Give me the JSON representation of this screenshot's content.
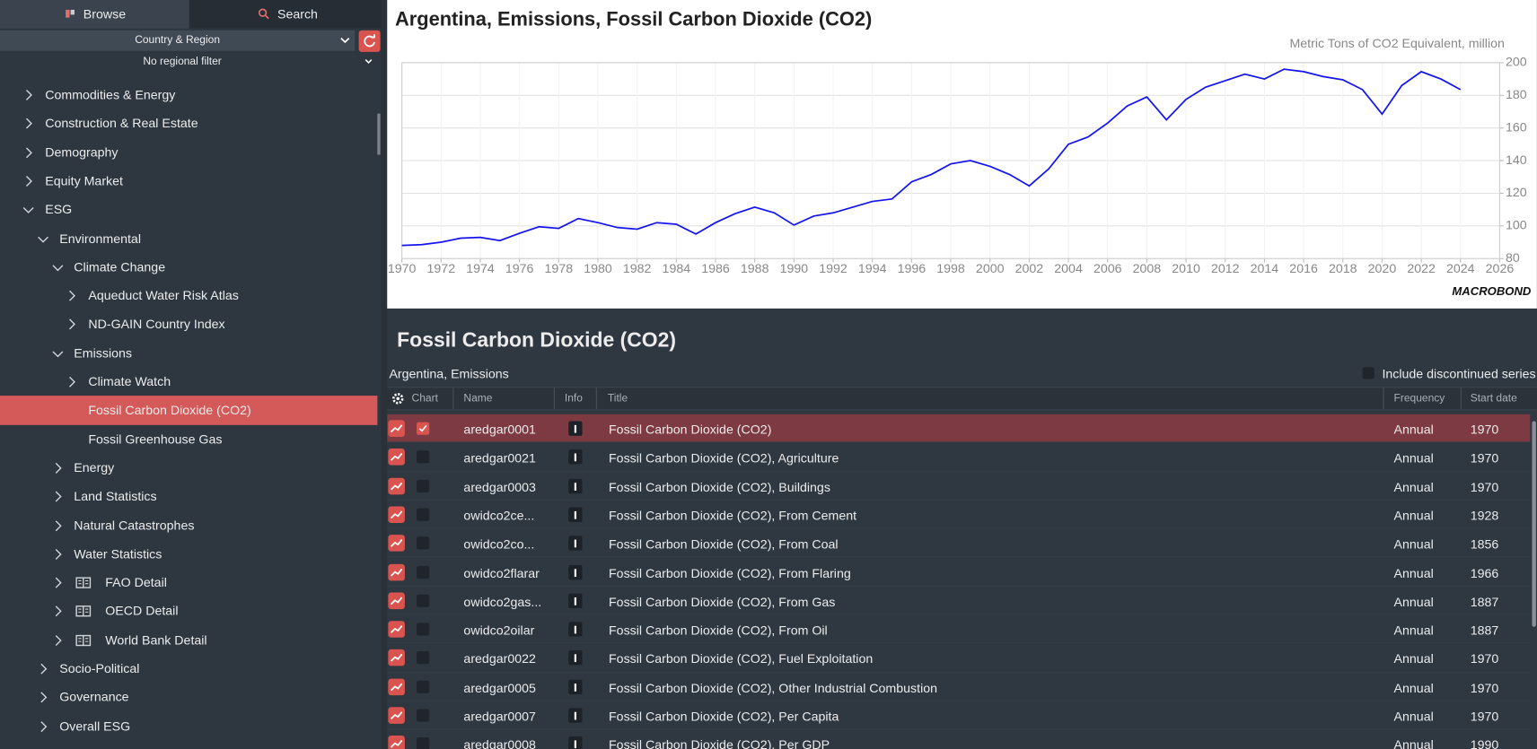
{
  "sidebar": {
    "tabs": [
      "Browse",
      "Search"
    ],
    "active_tab": 0,
    "filters": [
      "Country & Region",
      "No regional filter"
    ],
    "tree": [
      {
        "label": "Commodities & Energy",
        "level": 0,
        "state": "collapsed"
      },
      {
        "label": "Construction & Real Estate",
        "level": 0,
        "state": "collapsed"
      },
      {
        "label": "Demography",
        "level": 0,
        "state": "collapsed"
      },
      {
        "label": "Equity Market",
        "level": 0,
        "state": "collapsed"
      },
      {
        "label": "ESG",
        "level": 0,
        "state": "expanded"
      },
      {
        "label": "Environmental",
        "level": 1,
        "state": "expanded"
      },
      {
        "label": "Climate Change",
        "level": 2,
        "state": "expanded"
      },
      {
        "label": "Aqueduct Water Risk Atlas",
        "level": 3,
        "state": "collapsed"
      },
      {
        "label": "ND-GAIN Country Index",
        "level": 3,
        "state": "collapsed"
      },
      {
        "label": "Emissions",
        "level": 2,
        "state": "expanded"
      },
      {
        "label": "Climate Watch",
        "level": 3,
        "state": "collapsed"
      },
      {
        "label": "Fossil Carbon Dioxide (CO2)",
        "level": 3,
        "state": "leaf",
        "selected": true
      },
      {
        "label": "Fossil Greenhouse Gas",
        "level": 3,
        "state": "leaf"
      },
      {
        "label": "Energy",
        "level": 2,
        "state": "collapsed"
      },
      {
        "label": "Land Statistics",
        "level": 2,
        "state": "collapsed"
      },
      {
        "label": "Natural Catastrophes",
        "level": 2,
        "state": "collapsed"
      },
      {
        "label": "Water Statistics",
        "level": 2,
        "state": "collapsed"
      },
      {
        "label": "FAO Detail",
        "level": 2,
        "state": "collapsed",
        "icon": "book"
      },
      {
        "label": "OECD Detail",
        "level": 2,
        "state": "collapsed",
        "icon": "book"
      },
      {
        "label": "World Bank Detail",
        "level": 2,
        "state": "collapsed",
        "icon": "book"
      },
      {
        "label": "Socio-Political",
        "level": 1,
        "state": "collapsed"
      },
      {
        "label": "Governance",
        "level": 1,
        "state": "collapsed"
      },
      {
        "label": "Overall ESG",
        "level": 1,
        "state": "collapsed"
      }
    ]
  },
  "chart_data": {
    "type": "line",
    "title": "Argentina, Emissions, Fossil Carbon Dioxide (CO2)",
    "y_label": "Metric Tons of CO2 Equivalent, million",
    "logo": "MACROBOND",
    "x": [
      1970,
      1971,
      1972,
      1973,
      1974,
      1975,
      1976,
      1977,
      1978,
      1979,
      1980,
      1981,
      1982,
      1983,
      1984,
      1985,
      1986,
      1987,
      1988,
      1989,
      1990,
      1991,
      1992,
      1993,
      1994,
      1995,
      1996,
      1997,
      1998,
      1999,
      2000,
      2001,
      2002,
      2003,
      2004,
      2005,
      2006,
      2007,
      2008,
      2009,
      2010,
      2011,
      2012,
      2013,
      2014,
      2015,
      2016,
      2017,
      2018,
      2019,
      2020,
      2021,
      2022,
      2023,
      2024
    ],
    "series": [
      {
        "name": "Fossil Carbon Dioxide (CO2)",
        "color": "#1414f0",
        "values": [
          88,
          88.5,
          90,
          92.5,
          93,
          91,
          95.5,
          99.5,
          98.5,
          104.5,
          102,
          99,
          98,
          102,
          101,
          95,
          102,
          107.5,
          111.5,
          108,
          100.5,
          106,
          108,
          111.5,
          115,
          116.5,
          127,
          131.5,
          138,
          140,
          136.5,
          131.5,
          124.5,
          135,
          150,
          154.5,
          163,
          173.5,
          179,
          165,
          177.5,
          185,
          189,
          193,
          190,
          196,
          194.5,
          191.5,
          189.5,
          183.5,
          168.5,
          186,
          194.5,
          190,
          183.5
        ]
      }
    ],
    "xlim": [
      1970,
      2026
    ],
    "xticks": [
      1970,
      1972,
      1974,
      1976,
      1978,
      1980,
      1982,
      1984,
      1986,
      1988,
      1990,
      1992,
      1994,
      1996,
      1998,
      2000,
      2002,
      2004,
      2006,
      2008,
      2010,
      2012,
      2014,
      2016,
      2018,
      2020,
      2022,
      2024,
      2026
    ],
    "ylim": [
      80,
      200
    ],
    "yticks": [
      80,
      100,
      120,
      140,
      160,
      180,
      200
    ],
    "y_axis_side": "right",
    "grid": true
  },
  "series_list": {
    "title": "Fossil Carbon Dioxide (CO2)",
    "path": "Argentina, Emissions",
    "include_discontinued": "Include discontinued series",
    "columns": [
      "Chart",
      "Name",
      "Info",
      "Title",
      "Frequency",
      "Start date"
    ],
    "rows": [
      {
        "name": "aredgar0001",
        "title": "Fossil Carbon Dioxide (CO2)",
        "frequency": "Annual",
        "start_date": 1970,
        "checked": true
      },
      {
        "name": "aredgar0021",
        "title": "Fossil Carbon Dioxide (CO2), Agriculture",
        "frequency": "Annual",
        "start_date": 1970,
        "checked": false
      },
      {
        "name": "aredgar0003",
        "title": "Fossil Carbon Dioxide (CO2), Buildings",
        "frequency": "Annual",
        "start_date": 1970,
        "checked": false
      },
      {
        "name": "owidco2ce...",
        "title": "Fossil Carbon Dioxide (CO2), From Cement",
        "frequency": "Annual",
        "start_date": 1928,
        "checked": false
      },
      {
        "name": "owidco2co...",
        "title": "Fossil Carbon Dioxide (CO2), From Coal",
        "frequency": "Annual",
        "start_date": 1856,
        "checked": false
      },
      {
        "name": "owidco2flarar",
        "title": "Fossil Carbon Dioxide (CO2), From Flaring",
        "frequency": "Annual",
        "start_date": 1966,
        "checked": false
      },
      {
        "name": "owidco2gas...",
        "title": "Fossil Carbon Dioxide (CO2), From Gas",
        "frequency": "Annual",
        "start_date": 1887,
        "checked": false
      },
      {
        "name": "owidco2oilar",
        "title": "Fossil Carbon Dioxide (CO2), From Oil",
        "frequency": "Annual",
        "start_date": 1887,
        "checked": false
      },
      {
        "name": "aredgar0022",
        "title": "Fossil Carbon Dioxide (CO2), Fuel Exploitation",
        "frequency": "Annual",
        "start_date": 1970,
        "checked": false
      },
      {
        "name": "aredgar0005",
        "title": "Fossil Carbon Dioxide (CO2), Other Industrial Combustion",
        "frequency": "Annual",
        "start_date": 1970,
        "checked": false
      },
      {
        "name": "aredgar0007",
        "title": "Fossil Carbon Dioxide (CO2), Per Capita",
        "frequency": "Annual",
        "start_date": 1970,
        "checked": false
      },
      {
        "name": "aredgar0008",
        "title": "Fossil Carbon Dioxide (CO2), Per GDP",
        "frequency": "Annual",
        "start_date": 1990,
        "checked": false
      }
    ]
  }
}
